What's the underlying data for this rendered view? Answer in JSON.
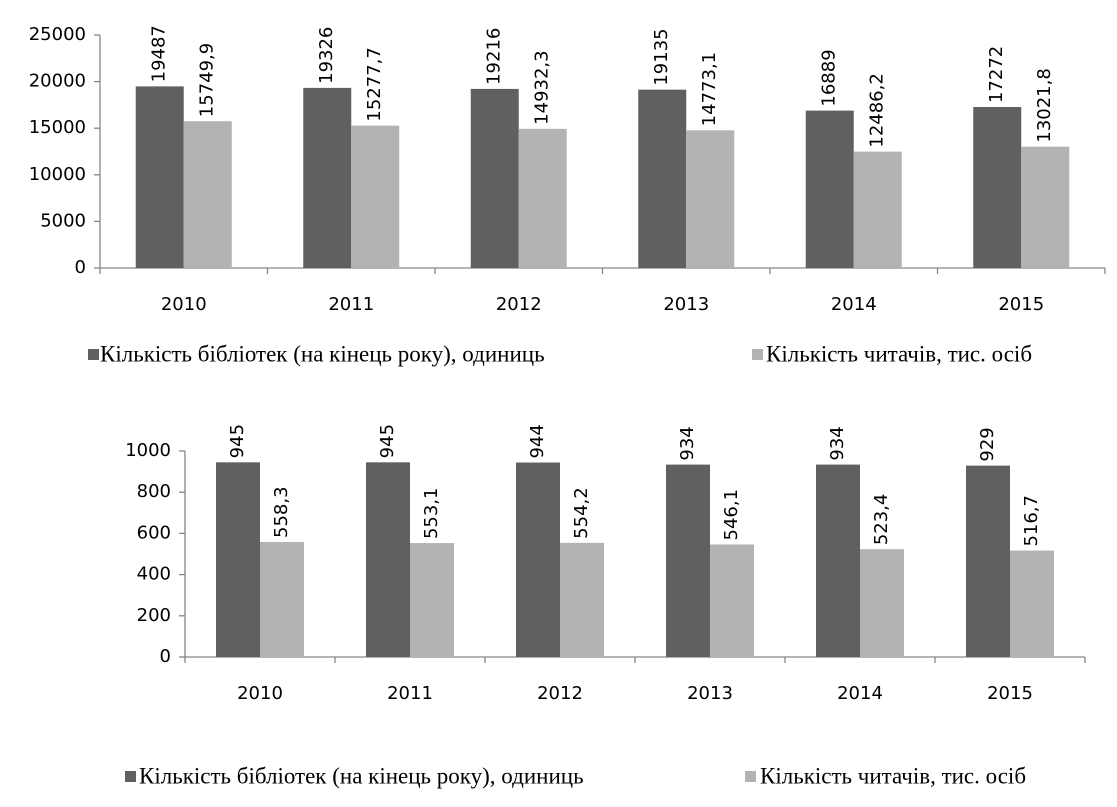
{
  "chart_data": [
    {
      "type": "bar",
      "categories": [
        "2010",
        "2011",
        "2012",
        "2013",
        "2014",
        "2015"
      ],
      "series": [
        {
          "name": "Кількість бібліотек (на кінець року), одиниць",
          "color": "#606060",
          "values": [
            19487,
            19326,
            19216,
            19135,
            16889,
            17272
          ]
        },
        {
          "name": "Кількість читачів, тис. осіб",
          "color": "#b3b3b3",
          "values": [
            15749.9,
            15277.7,
            14932.3,
            14773.1,
            12486.2,
            13021.8
          ],
          "value_labels": [
            "15749,9",
            "15277,7",
            "14932,3",
            "14773,1",
            "12486,2",
            "13021,8"
          ]
        }
      ],
      "ylim": [
        0,
        25000
      ],
      "yticks": [
        0,
        5000,
        10000,
        15000,
        20000,
        25000
      ],
      "legend": "bottom"
    },
    {
      "type": "bar",
      "categories": [
        "2010",
        "2011",
        "2012",
        "2013",
        "2014",
        "2015"
      ],
      "series": [
        {
          "name": "Кількість бібліотек (на кінець року), одиниць",
          "color": "#606060",
          "values": [
            945,
            945,
            944,
            934,
            934,
            929
          ]
        },
        {
          "name": "Кількість читачів, тис. осіб",
          "color": "#b3b3b3",
          "values": [
            558.3,
            553.1,
            554.2,
            546.1,
            523.4,
            516.7
          ],
          "value_labels": [
            "558,3",
            "553,1",
            "554,2",
            "546,1",
            "523,4",
            "516,7"
          ]
        }
      ],
      "ylim": [
        0,
        1000
      ],
      "yticks": [
        0,
        200,
        400,
        600,
        800,
        1000
      ],
      "legend": "bottom"
    }
  ]
}
